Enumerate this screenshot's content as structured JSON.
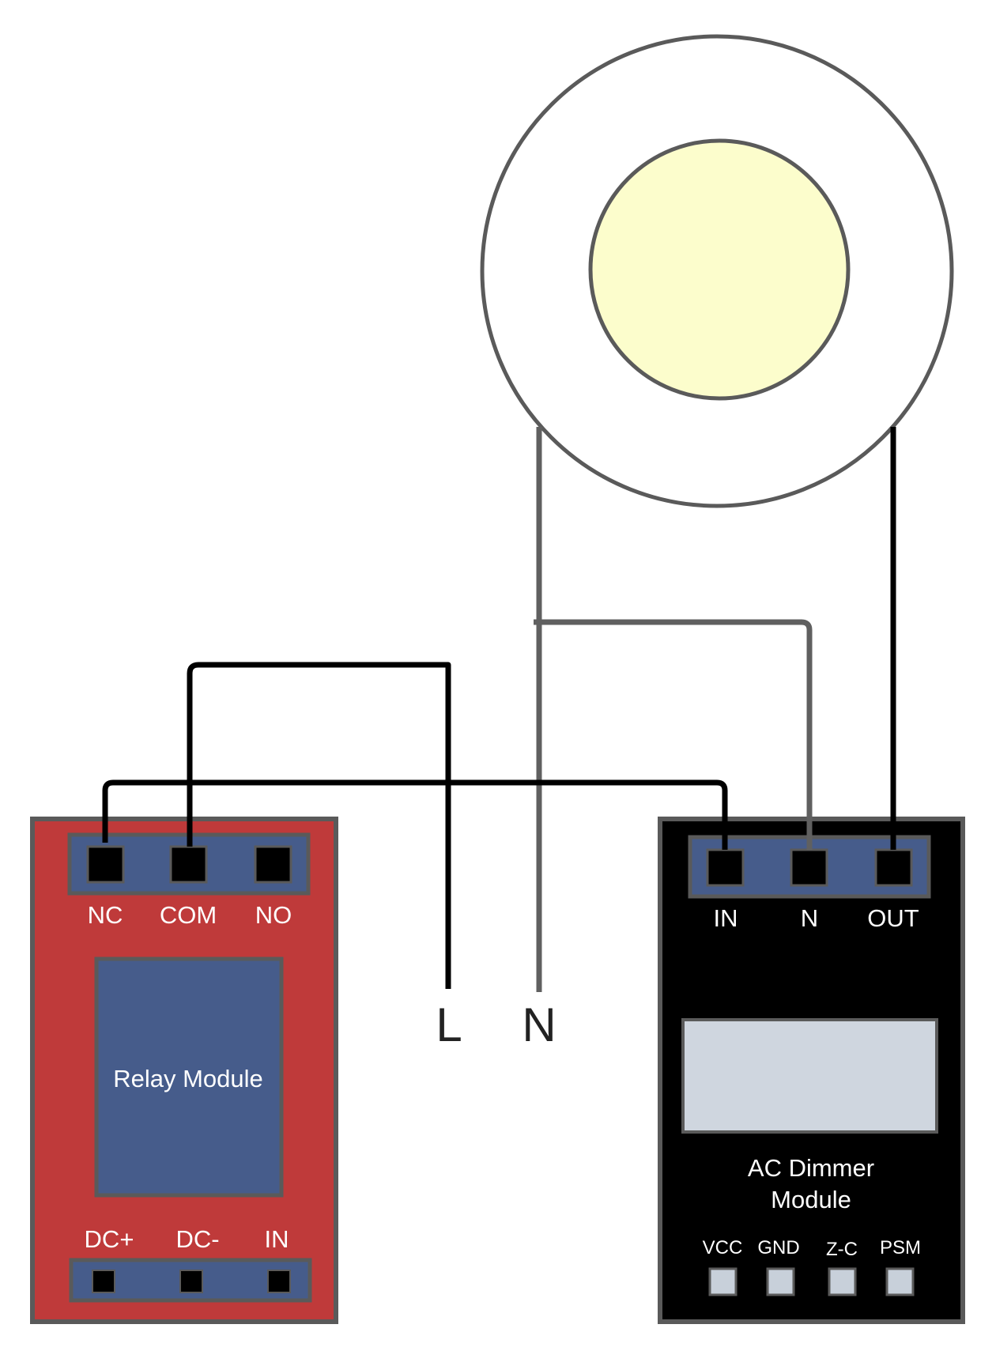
{
  "relay": {
    "top_pins": [
      "NC",
      "COM",
      "NO"
    ],
    "title": "Relay Module",
    "bottom_pins": [
      "DC+",
      "DC-",
      "IN"
    ]
  },
  "mains": {
    "line_label": "L",
    "neutral_label": "N"
  },
  "dimmer": {
    "top_pins": [
      "IN",
      "N",
      "OUT"
    ],
    "title_line1": "AC Dimmer",
    "title_line2": "Module",
    "bottom_pins": [
      "VCC",
      "GND",
      "Z-C",
      "PSM"
    ]
  },
  "colors": {
    "relay_board": "#bf3a3a",
    "module_blue": "#465c8b",
    "dimmer_board": "#000000",
    "bulb_glow": "#fcfdcc",
    "outline_gray": "#5a5a5a",
    "wire_black": "#000000",
    "wire_gray": "#606060",
    "dimmer_window": "#cfd6df",
    "small_pad": "#c8d0da"
  }
}
